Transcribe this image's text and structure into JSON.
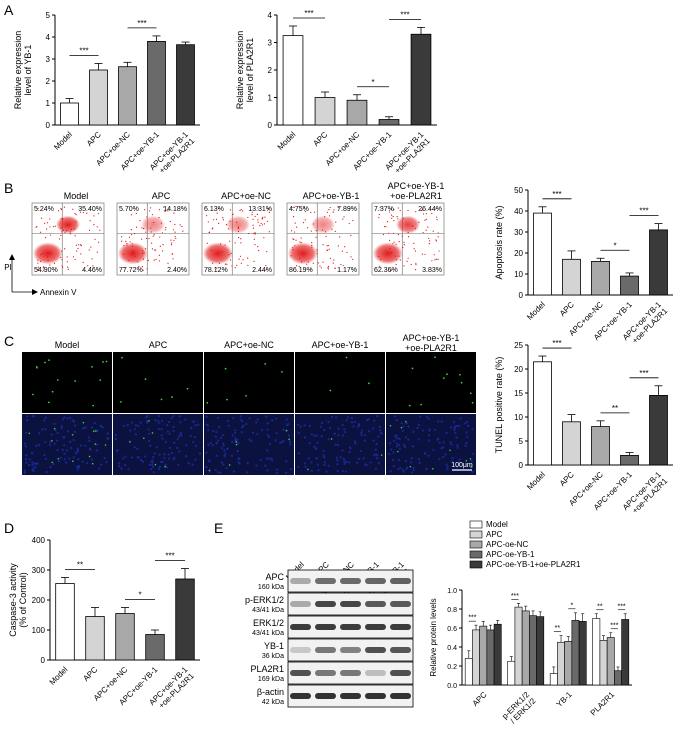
{
  "panel_labels": [
    "A",
    "B",
    "C",
    "D",
    "E"
  ],
  "group_labels": [
    "Model",
    "APC",
    "APC+oe-NC",
    "APC+oe-YB-1",
    "APC+oe-YB-1\n+oe-PLA2R1"
  ],
  "colors": {
    "model": "#ffffff",
    "apc": "#d4d4d4",
    "apc_oe_nc": "#a8a8a8",
    "apc_oe_yb1": "#6a6a6a",
    "apc_oe_yb1_pla2r1": "#3a3a3a",
    "dot_plot_red": "#e01010",
    "fluor_green": "#39d039",
    "fluor_blue": "#1a2a9c"
  },
  "flow": {
    "y_label": "PI",
    "x_label": "Annexin V",
    "plots": [
      {
        "title": "Model",
        "q": [
          "5.24%",
          "35.40%",
          "54.90%",
          "4.46%"
        ]
      },
      {
        "title": "APC",
        "q": [
          "5.70%",
          "14.18%",
          "77.72%",
          "2.40%"
        ]
      },
      {
        "title": "APC+oe-NC",
        "q": [
          "6.13%",
          "13.31%",
          "78.12%",
          "2.44%"
        ]
      },
      {
        "title": "APC+oe-YB-1",
        "q": [
          "4.75%",
          "7.89%",
          "86.19%",
          "1.17%"
        ]
      },
      {
        "title": "APC+oe-YB-1\n+oe-PLA2R1",
        "q": [
          "7.37%",
          "26.44%",
          "62.36%",
          "3.83%"
        ]
      }
    ]
  },
  "tunel_images": {
    "titles": [
      "Model",
      "APC",
      "APC+oe-NC",
      "APC+oe-YB-1",
      "APC+oe-YB-1\n+oe-PLA2R1"
    ],
    "scale_bar": "100μm"
  },
  "western": {
    "lanes": [
      "Model",
      "APC",
      "APC+oe-NC",
      "APC+oe-YB-1",
      "APC+oe-YB-1\n+oe-PLA2R1"
    ],
    "rows": [
      {
        "name": "APC",
        "size": "160 kDa",
        "intensity": [
          0.3,
          0.6,
          0.62,
          0.64,
          0.66
        ]
      },
      {
        "name": "p-ERK1/2",
        "size": "43/41 kDa",
        "intensity": [
          0.3,
          0.8,
          0.8,
          0.7,
          0.7
        ]
      },
      {
        "name": "ERK1/2",
        "size": "43/41 kDa",
        "intensity": [
          0.85,
          0.85,
          0.85,
          0.85,
          0.85
        ]
      },
      {
        "name": "YB-1",
        "size": "36 kDa",
        "intensity": [
          0.15,
          0.55,
          0.5,
          0.75,
          0.72
        ]
      },
      {
        "name": "PLA2R1",
        "size": "169 kDa",
        "intensity": [
          0.75,
          0.55,
          0.55,
          0.2,
          0.75
        ]
      },
      {
        "name": "β-actin",
        "size": "42 kDa",
        "intensity": [
          0.9,
          0.9,
          0.9,
          0.9,
          0.9
        ]
      }
    ]
  },
  "chart_data": [
    {
      "id": "A1",
      "type": "bar",
      "categories": [
        "Model",
        "APC",
        "APC+oe-NC",
        "APC+oe-YB-1",
        "APC+oe-YB-1\n+oe-PLA2R1"
      ],
      "values": [
        1.0,
        2.5,
        2.65,
        3.8,
        3.65
      ],
      "errors": [
        0.2,
        0.3,
        0.2,
        0.25,
        0.12
      ],
      "ylabel": "Relative expression\nlevel of YB-1",
      "ylim": [
        0,
        5
      ],
      "yticks": [
        0,
        1,
        2,
        3,
        4,
        5
      ],
      "sig": [
        {
          "from": 0,
          "to": 1,
          "label": "***"
        },
        {
          "from": 2,
          "to": 3,
          "label": "***"
        }
      ]
    },
    {
      "id": "A2",
      "type": "bar",
      "categories": [
        "Model",
        "APC",
        "APC+oe-NC",
        "APC+oe-YB-1",
        "APC+oe-YB-1\n+oe-PLA2R1"
      ],
      "values": [
        3.25,
        1.0,
        0.9,
        0.2,
        3.3
      ],
      "errors": [
        0.35,
        0.2,
        0.2,
        0.1,
        0.25
      ],
      "ylabel": "Relative expression\nlevel of PLA2R1",
      "ylim": [
        0,
        4
      ],
      "yticks": [
        0,
        1,
        2,
        3,
        4
      ],
      "sig": [
        {
          "from": 0,
          "to": 1,
          "label": "***"
        },
        {
          "from": 2,
          "to": 3,
          "label": "*"
        },
        {
          "from": 3,
          "to": 4,
          "label": "***"
        }
      ]
    },
    {
      "id": "B",
      "type": "bar",
      "categories": [
        "Model",
        "APC",
        "APC+oe-NC",
        "APC+oe-YB-1",
        "APC+oe-YB-1\n+oe-PLA2R1"
      ],
      "values": [
        39,
        17,
        16,
        9,
        31
      ],
      "errors": [
        3,
        4,
        1.5,
        1.5,
        3
      ],
      "ylabel": "Apoptosis rate (%)",
      "ylim": [
        0,
        50
      ],
      "yticks": [
        0,
        10,
        20,
        30,
        40,
        50
      ],
      "sig": [
        {
          "from": 0,
          "to": 1,
          "label": "***"
        },
        {
          "from": 2,
          "to": 3,
          "label": "*"
        },
        {
          "from": 3,
          "to": 4,
          "label": "***"
        }
      ]
    },
    {
      "id": "C",
      "type": "bar",
      "categories": [
        "Model",
        "APC",
        "APC+oe-NC",
        "APC+oe-YB-1",
        "APC+oe-YB-1\n+oe-PLA2R1"
      ],
      "values": [
        21.5,
        9,
        8,
        2,
        14.5
      ],
      "errors": [
        1.2,
        1.5,
        1.2,
        0.6,
        2
      ],
      "ylabel": "TUNEL positive rate (%)",
      "ylim": [
        0,
        25
      ],
      "yticks": [
        0,
        5,
        10,
        15,
        20,
        25
      ],
      "sig": [
        {
          "from": 0,
          "to": 1,
          "label": "***"
        },
        {
          "from": 2,
          "to": 3,
          "label": "**"
        },
        {
          "from": 3,
          "to": 4,
          "label": "***"
        }
      ]
    },
    {
      "id": "D",
      "type": "bar",
      "categories": [
        "Model",
        "APC",
        "APC+oe-NC",
        "APC+oe-YB-1",
        "APC+oe-YB-1\n+oe-PLA2R1"
      ],
      "values": [
        255,
        145,
        155,
        85,
        270
      ],
      "errors": [
        20,
        30,
        20,
        15,
        35
      ],
      "ylabel": "Caspase-3 activity\n(% of Control)",
      "ylim": [
        0,
        400
      ],
      "yticks": [
        0,
        100,
        200,
        300,
        400
      ],
      "sig": [
        {
          "from": 0,
          "to": 1,
          "label": "**"
        },
        {
          "from": 2,
          "to": 3,
          "label": "*"
        },
        {
          "from": 3,
          "to": 4,
          "label": "***"
        }
      ]
    },
    {
      "id": "E",
      "type": "bar",
      "categories": [
        "APC",
        "p-ERK1/2\n/ ERK1/2",
        "YB-1",
        "PLA2R1"
      ],
      "series": [
        {
          "name": "Model",
          "values": [
            0.28,
            0.25,
            0.12,
            0.7
          ],
          "errors": [
            0.08,
            0.05,
            0.07,
            0.05
          ]
        },
        {
          "name": "APC",
          "values": [
            0.58,
            0.82,
            0.45,
            0.47
          ],
          "errors": [
            0.05,
            0.04,
            0.07,
            0.05
          ]
        },
        {
          "name": "APC-oe-NC",
          "values": [
            0.62,
            0.78,
            0.46,
            0.5
          ],
          "errors": [
            0.05,
            0.05,
            0.05,
            0.05
          ]
        },
        {
          "name": "APC-oe-YB-1",
          "values": [
            0.58,
            0.73,
            0.68,
            0.15
          ],
          "errors": [
            0.05,
            0.05,
            0.08,
            0.04
          ]
        },
        {
          "name": "APC-oe-YB-1+oe-PLA2R1",
          "values": [
            0.64,
            0.72,
            0.67,
            0.69
          ],
          "errors": [
            0.04,
            0.05,
            0.08,
            0.06
          ]
        }
      ],
      "ylabel": "Relative protein levels",
      "ylim": [
        0,
        1.0
      ],
      "yticks": [
        0.0,
        0.2,
        0.4,
        0.6,
        0.8,
        1.0
      ],
      "ytick_labels": [
        "0.0",
        "0.2",
        "0.4",
        "0.6",
        "0.8",
        "1.0"
      ],
      "sig": [
        {
          "cat": 0,
          "from": 0,
          "to": 1,
          "label": "***"
        },
        {
          "cat": 1,
          "from": 0,
          "to": 1,
          "label": "***"
        },
        {
          "cat": 2,
          "from": 0,
          "to": 1,
          "label": "**"
        },
        {
          "cat": 2,
          "from": 2,
          "to": 3,
          "label": "*"
        },
        {
          "cat": 3,
          "from": 0,
          "to": 1,
          "label": "**"
        },
        {
          "cat": 3,
          "from": 2,
          "to": 3,
          "label": "***"
        },
        {
          "cat": 3,
          "from": 3,
          "to": 4,
          "label": "***"
        }
      ]
    }
  ]
}
